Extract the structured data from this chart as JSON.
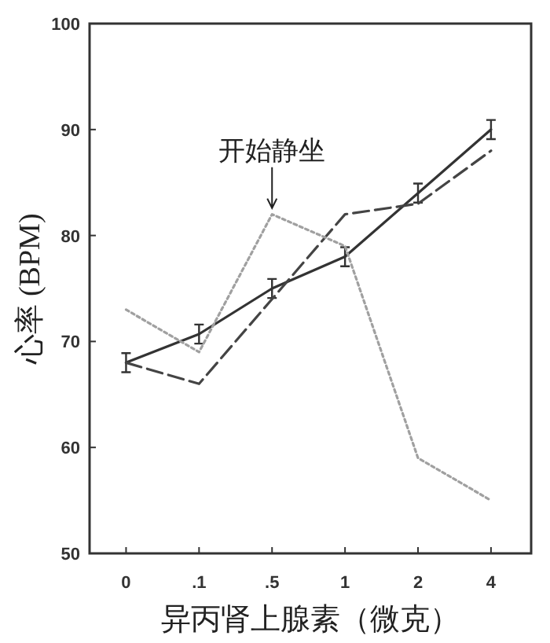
{
  "chart_data": {
    "type": "line",
    "xlabel": "异丙肾上腺素（微克）",
    "ylabel": "心率 (BPM)",
    "categories": [
      "0",
      ".1",
      ".5",
      "1",
      "2",
      "4"
    ],
    "ylim": [
      50,
      100
    ],
    "yticks": [
      50,
      60,
      70,
      80,
      90,
      100
    ],
    "grid": false,
    "marker": "none",
    "series": [
      {
        "color": "#333333",
        "line_style": "solid",
        "values": [
          68,
          70.7,
          75,
          78,
          84,
          90
        ],
        "errors": [
          0.9,
          0.9,
          0.9,
          0.9,
          0.9,
          0.9
        ]
      },
      {
        "color": "#444444",
        "line_style": "dashed",
        "values": [
          68,
          66,
          74,
          82,
          83,
          88
        ]
      },
      {
        "color": "#a0a0a0",
        "line_style": "dotted",
        "values": [
          73,
          69,
          82,
          79,
          59,
          55
        ]
      }
    ],
    "annotations": [
      {
        "text": "开始静坐",
        "x": ".5",
        "y": 82
      }
    ]
  }
}
